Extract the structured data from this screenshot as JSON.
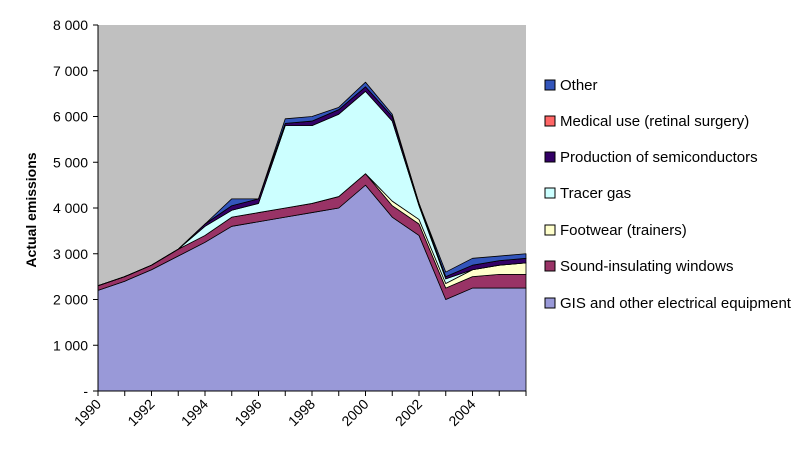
{
  "chart_data": {
    "type": "area",
    "stacked": true,
    "title": "",
    "xlabel": "",
    "ylabel": "Actual emissions",
    "ylim": [
      0,
      8000
    ],
    "grid": false,
    "plot_background": "#c0c0c0",
    "legend_position": "right",
    "x": [
      1990,
      1991,
      1992,
      1993,
      1994,
      1995,
      1996,
      1997,
      1998,
      1999,
      2000,
      2001,
      2002,
      2003,
      2004,
      2005,
      2006
    ],
    "x_ticks": [
      "1990",
      "1992",
      "1994",
      "1996",
      "1998",
      "2000",
      "2002",
      "2004"
    ],
    "y_ticks": [
      "-",
      "1 000",
      "2 000",
      "3 000",
      "4 000",
      "5 000",
      "6 000",
      "7 000",
      "8 000"
    ],
    "series": [
      {
        "name": "GIS and other electrical equipment",
        "color": "#9999d8",
        "values": [
          2200,
          2400,
          2650,
          2950,
          3250,
          3600,
          3700,
          3800,
          3900,
          4000,
          4500,
          3800,
          3400,
          2000,
          2250,
          2250,
          2250
        ]
      },
      {
        "name": "Sound-insulating windows",
        "color": "#993366",
        "values": [
          100,
          100,
          100,
          150,
          150,
          200,
          200,
          200,
          200,
          250,
          250,
          250,
          250,
          250,
          250,
          300,
          300
        ]
      },
      {
        "name": "Footwear (trainers)",
        "color": "#ffffcc",
        "values": [
          0,
          0,
          0,
          0,
          0,
          0,
          0,
          0,
          0,
          0,
          0,
          100,
          100,
          100,
          150,
          200,
          250
        ]
      },
      {
        "name": "Tracer gas",
        "color": "#ccffff",
        "values": [
          0,
          0,
          0,
          0,
          200,
          150,
          200,
          1800,
          1700,
          1800,
          1800,
          1750,
          300,
          100,
          0,
          0,
          0
        ]
      },
      {
        "name": "Production of semiconductors",
        "color": "#330066",
        "values": [
          0,
          0,
          0,
          0,
          50,
          100,
          100,
          50,
          100,
          100,
          100,
          100,
          50,
          50,
          100,
          100,
          100
        ]
      },
      {
        "name": "Medical use (retinal surgery)",
        "color": "#ff6666",
        "values": [
          0,
          0,
          0,
          0,
          0,
          0,
          0,
          0,
          0,
          0,
          0,
          0,
          0,
          0,
          0,
          0,
          0
        ]
      },
      {
        "name": "Other",
        "color": "#3355bb",
        "values": [
          0,
          0,
          0,
          0,
          0,
          150,
          0,
          100,
          100,
          50,
          100,
          50,
          0,
          100,
          150,
          100,
          100
        ]
      }
    ]
  }
}
